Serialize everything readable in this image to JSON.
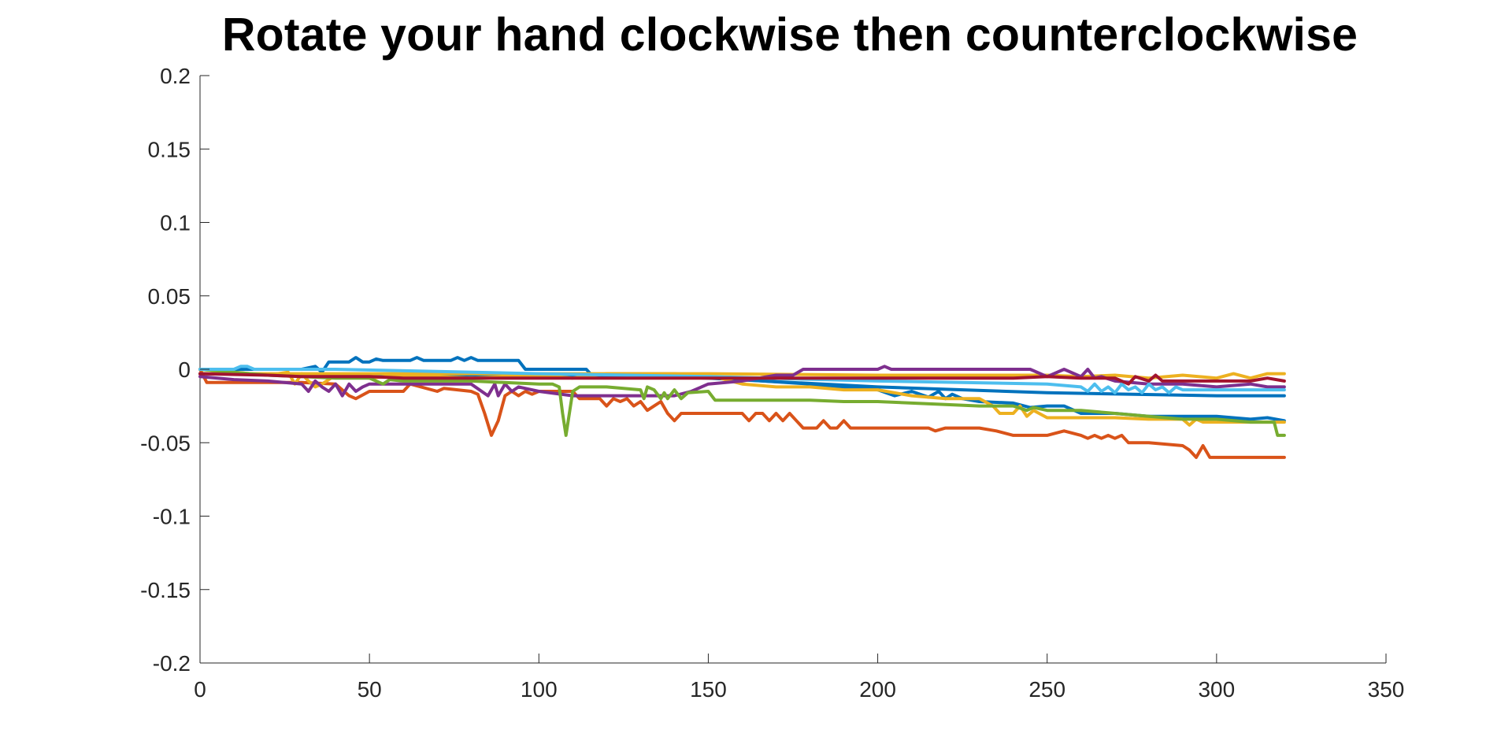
{
  "chart_data": {
    "type": "line",
    "title": "Rotate your hand clockwise then counterclockwise",
    "xlabel": "",
    "ylabel": "",
    "xlim": [
      0,
      350
    ],
    "ylim": [
      -0.2,
      0.2
    ],
    "xticks": [
      0,
      50,
      100,
      150,
      200,
      250,
      300,
      350
    ],
    "yticks": [
      0.2,
      0.15,
      0.1,
      0.05,
      0,
      -0.05,
      -0.1,
      -0.15,
      -0.2
    ],
    "xtick_labels": [
      "0",
      "50",
      "100",
      "150",
      "200",
      "250",
      "300",
      "350"
    ],
    "ytick_labels": [
      "0.2",
      "0.15",
      "0.1",
      "0.05",
      "0",
      "-0.05",
      "-0.1",
      "-0.15",
      "-0.2"
    ],
    "grid": false,
    "legend": false,
    "series": [
      {
        "color": "#0072BD",
        "x": [
          0,
          30,
          34,
          36,
          38,
          40,
          44,
          46,
          48,
          50,
          52,
          54,
          62,
          64,
          66,
          74,
          76,
          78,
          80,
          82,
          94,
          96,
          114,
          116,
          140,
          150,
          160,
          180,
          190,
          200,
          205,
          210,
          215,
          218,
          220,
          222,
          225,
          230,
          240,
          245,
          250,
          255,
          260,
          270,
          280,
          290,
          300,
          310,
          315,
          320
        ],
        "y": [
          0,
          0,
          0.002,
          -0.002,
          0.005,
          0.005,
          0.005,
          0.008,
          0.005,
          0.005,
          0.007,
          0.006,
          0.006,
          0.008,
          0.006,
          0.006,
          0.008,
          0.006,
          0.008,
          0.006,
          0.006,
          0.0,
          0.0,
          -0.005,
          -0.005,
          -0.005,
          -0.007,
          -0.01,
          -0.012,
          -0.014,
          -0.018,
          -0.015,
          -0.019,
          -0.015,
          -0.02,
          -0.017,
          -0.02,
          -0.022,
          -0.023,
          -0.026,
          -0.025,
          -0.025,
          -0.03,
          -0.03,
          -0.032,
          -0.032,
          -0.032,
          -0.034,
          -0.033,
          -0.035
        ]
      },
      {
        "color": "#0072BD",
        "x": [
          0,
          100,
          150,
          200,
          250,
          300,
          320
        ],
        "y": [
          -0.003,
          -0.004,
          -0.006,
          -0.012,
          -0.016,
          -0.018,
          -0.018
        ]
      },
      {
        "color": "#D95319",
        "x": [
          0,
          2,
          10,
          30,
          40,
          44,
          46,
          50,
          52,
          60,
          62,
          70,
          72,
          80,
          82,
          84,
          86,
          88,
          90,
          92,
          94,
          96,
          98,
          100,
          110,
          112,
          116,
          118,
          120,
          122,
          124,
          126,
          128,
          130,
          132,
          134,
          136,
          138,
          140,
          142,
          150,
          160,
          162,
          164,
          166,
          168,
          170,
          172,
          174,
          176,
          178,
          180,
          182,
          184,
          186,
          188,
          190,
          192,
          200,
          210,
          215,
          217,
          220,
          230,
          235,
          240,
          245,
          250,
          255,
          260,
          262,
          264,
          266,
          268,
          270,
          272,
          274,
          280,
          290,
          292,
          294,
          296,
          298,
          300,
          310,
          320
        ],
        "y": [
          0,
          -0.009,
          -0.009,
          -0.009,
          -0.01,
          -0.018,
          -0.02,
          -0.015,
          -0.015,
          -0.015,
          -0.01,
          -0.015,
          -0.013,
          -0.015,
          -0.017,
          -0.03,
          -0.045,
          -0.035,
          -0.018,
          -0.015,
          -0.018,
          -0.015,
          -0.017,
          -0.015,
          -0.015,
          -0.02,
          -0.02,
          -0.02,
          -0.025,
          -0.02,
          -0.022,
          -0.02,
          -0.025,
          -0.022,
          -0.028,
          -0.025,
          -0.022,
          -0.03,
          -0.035,
          -0.03,
          -0.03,
          -0.03,
          -0.035,
          -0.03,
          -0.03,
          -0.035,
          -0.03,
          -0.035,
          -0.03,
          -0.035,
          -0.04,
          -0.04,
          -0.04,
          -0.035,
          -0.04,
          -0.04,
          -0.035,
          -0.04,
          -0.04,
          -0.04,
          -0.04,
          -0.042,
          -0.04,
          -0.04,
          -0.042,
          -0.045,
          -0.045,
          -0.045,
          -0.042,
          -0.045,
          -0.047,
          -0.045,
          -0.047,
          -0.045,
          -0.047,
          -0.045,
          -0.05,
          -0.05,
          -0.052,
          -0.055,
          -0.06,
          -0.052,
          -0.06,
          -0.06,
          -0.06,
          -0.06
        ]
      },
      {
        "color": "#EDB120",
        "x": [
          0,
          20,
          26,
          28,
          30,
          32,
          34,
          36,
          40,
          50,
          60,
          80,
          100,
          110,
          120,
          140,
          150,
          160,
          170,
          180,
          190,
          200,
          210,
          220,
          230,
          234,
          236,
          240,
          242,
          244,
          246,
          250,
          260,
          270,
          280,
          290,
          292,
          294,
          296,
          300,
          310,
          320
        ],
        "y": [
          0,
          -0.004,
          -0.002,
          -0.01,
          -0.003,
          -0.008,
          -0.012,
          -0.01,
          -0.004,
          -0.006,
          -0.004,
          -0.006,
          -0.004,
          -0.006,
          -0.003,
          -0.003,
          -0.004,
          -0.01,
          -0.012,
          -0.012,
          -0.014,
          -0.014,
          -0.018,
          -0.02,
          -0.02,
          -0.025,
          -0.03,
          -0.03,
          -0.025,
          -0.032,
          -0.028,
          -0.033,
          -0.033,
          -0.033,
          -0.034,
          -0.034,
          -0.038,
          -0.034,
          -0.036,
          -0.036,
          -0.036,
          -0.036
        ]
      },
      {
        "color": "#EDB120",
        "x": [
          0,
          100,
          150,
          200,
          250,
          260,
          270,
          280,
          290,
          300,
          305,
          310,
          315,
          320
        ],
        "y": [
          -0.003,
          -0.003,
          -0.003,
          -0.004,
          -0.004,
          -0.005,
          -0.004,
          -0.006,
          -0.004,
          -0.006,
          -0.003,
          -0.006,
          -0.003,
          -0.003
        ]
      },
      {
        "color": "#7E2F8E",
        "x": [
          0,
          10,
          20,
          30,
          32,
          34,
          36,
          38,
          40,
          42,
          44,
          46,
          48,
          50,
          60,
          80,
          85,
          87,
          88,
          90,
          92,
          94,
          100,
          110,
          120,
          130,
          140,
          145,
          150,
          160,
          170,
          175,
          178,
          180,
          185,
          190,
          200,
          202,
          204,
          210,
          220,
          230,
          240,
          245,
          250,
          255,
          260,
          262,
          264,
          266,
          270,
          280,
          290,
          300,
          310,
          315,
          320
        ],
        "y": [
          -0.005,
          -0.007,
          -0.008,
          -0.01,
          -0.015,
          -0.008,
          -0.012,
          -0.015,
          -0.01,
          -0.018,
          -0.01,
          -0.015,
          -0.012,
          -0.01,
          -0.01,
          -0.01,
          -0.018,
          -0.01,
          -0.018,
          -0.01,
          -0.015,
          -0.012,
          -0.015,
          -0.018,
          -0.018,
          -0.018,
          -0.018,
          -0.015,
          -0.01,
          -0.008,
          -0.004,
          -0.004,
          0.0,
          0.0,
          0.0,
          0.0,
          0.0,
          0.002,
          0.0,
          0.0,
          0.0,
          0.0,
          0.0,
          0.0,
          -0.005,
          0.0,
          -0.005,
          0.0,
          -0.006,
          -0.005,
          -0.008,
          -0.01,
          -0.01,
          -0.012,
          -0.01,
          -0.012,
          -0.012
        ]
      },
      {
        "color": "#77AC30",
        "x": [
          0,
          20,
          30,
          40,
          50,
          54,
          56,
          60,
          80,
          100,
          104,
          106,
          107,
          108,
          109,
          110,
          112,
          120,
          130,
          131,
          132,
          134,
          136,
          137,
          138,
          140,
          142,
          144,
          150,
          152,
          160,
          170,
          180,
          190,
          200,
          210,
          220,
          230,
          240,
          244,
          246,
          250,
          260,
          270,
          280,
          290,
          300,
          310,
          317,
          318,
          320
        ],
        "y": [
          0,
          -0.004,
          -0.005,
          -0.006,
          -0.006,
          -0.01,
          -0.007,
          -0.008,
          -0.008,
          -0.01,
          -0.01,
          -0.012,
          -0.03,
          -0.045,
          -0.03,
          -0.015,
          -0.012,
          -0.012,
          -0.014,
          -0.02,
          -0.012,
          -0.014,
          -0.02,
          -0.016,
          -0.02,
          -0.014,
          -0.02,
          -0.016,
          -0.015,
          -0.021,
          -0.021,
          -0.021,
          -0.021,
          -0.022,
          -0.022,
          -0.023,
          -0.024,
          -0.025,
          -0.025,
          -0.028,
          -0.026,
          -0.028,
          -0.028,
          -0.03,
          -0.032,
          -0.034,
          -0.034,
          -0.036,
          -0.036,
          -0.045,
          -0.045
        ]
      },
      {
        "color": "#4DBEEE",
        "x": [
          0,
          10,
          12,
          14,
          16,
          18,
          30,
          40,
          100,
          150,
          200,
          250,
          260,
          262,
          264,
          266,
          268,
          270,
          272,
          274,
          276,
          278,
          280,
          282,
          284,
          286,
          288,
          290,
          300,
          310,
          320
        ],
        "y": [
          0,
          0,
          0.002,
          0.002,
          0.0,
          0.0,
          0.0,
          0.0,
          -0.003,
          -0.005,
          -0.008,
          -0.01,
          -0.012,
          -0.015,
          -0.01,
          -0.015,
          -0.012,
          -0.016,
          -0.01,
          -0.014,
          -0.012,
          -0.016,
          -0.01,
          -0.014,
          -0.012,
          -0.016,
          -0.012,
          -0.014,
          -0.014,
          -0.014,
          -0.014
        ]
      },
      {
        "color": "#A2142F",
        "x": [
          0,
          20,
          30,
          40,
          50,
          60,
          80,
          100,
          120,
          140,
          160,
          180,
          200,
          220,
          240,
          250,
          260,
          270,
          274,
          276,
          280,
          282,
          284,
          290,
          300,
          310,
          315,
          320
        ],
        "y": [
          -0.003,
          -0.004,
          -0.005,
          -0.005,
          -0.005,
          -0.006,
          -0.006,
          -0.006,
          -0.006,
          -0.006,
          -0.006,
          -0.006,
          -0.006,
          -0.006,
          -0.006,
          -0.005,
          -0.006,
          -0.006,
          -0.01,
          -0.005,
          -0.008,
          -0.004,
          -0.008,
          -0.008,
          -0.008,
          -0.008,
          -0.006,
          -0.008
        ]
      }
    ]
  }
}
